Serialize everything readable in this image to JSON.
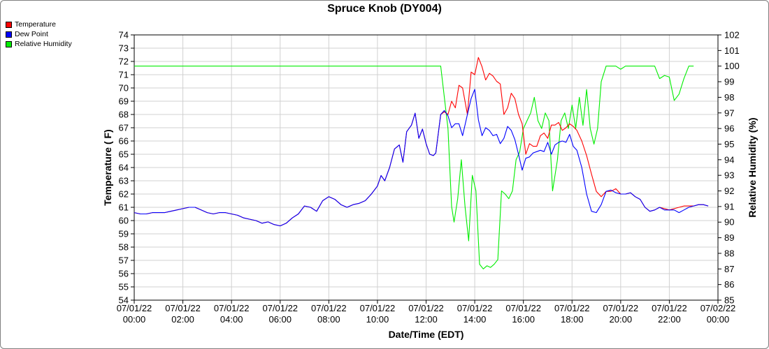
{
  "chart_data": {
    "type": "line",
    "title": "Spruce Knob (DY004)",
    "xlabel": "Date/Time (EDT)",
    "ylabel": "Temperature ( F)",
    "y2label": "Relative Humidity (%)",
    "x_ticks": [
      [
        "07/01/22",
        "00:00"
      ],
      [
        "07/01/22",
        "02:00"
      ],
      [
        "07/01/22",
        "04:00"
      ],
      [
        "07/01/22",
        "06:00"
      ],
      [
        "07/01/22",
        "08:00"
      ],
      [
        "07/01/22",
        "10:00"
      ],
      [
        "07/01/22",
        "12:00"
      ],
      [
        "07/01/22",
        "14:00"
      ],
      [
        "07/01/22",
        "16:00"
      ],
      [
        "07/01/22",
        "18:00"
      ],
      [
        "07/01/22",
        "20:00"
      ],
      [
        "07/01/22",
        "22:00"
      ],
      [
        "07/02/22",
        "00:00"
      ]
    ],
    "xlim_hours": [
      0,
      24
    ],
    "ylim": [
      54,
      74
    ],
    "y2lim": [
      85,
      102
    ],
    "grid": true,
    "legend_position": "top-left",
    "series": [
      {
        "name": "Temperature",
        "color": "#ff0000",
        "axis": "left",
        "points": [
          [
            0,
            60.6
          ],
          [
            0.25,
            60.5
          ],
          [
            0.5,
            60.5
          ],
          [
            0.75,
            60.6
          ],
          [
            1,
            60.6
          ],
          [
            1.25,
            60.6
          ],
          [
            1.5,
            60.7
          ],
          [
            1.75,
            60.8
          ],
          [
            2,
            60.9
          ],
          [
            2.25,
            61
          ],
          [
            2.5,
            61
          ],
          [
            2.75,
            60.8
          ],
          [
            3,
            60.6
          ],
          [
            3.25,
            60.5
          ],
          [
            3.5,
            60.6
          ],
          [
            3.75,
            60.6
          ],
          [
            4,
            60.5
          ],
          [
            4.25,
            60.4
          ],
          [
            4.5,
            60.2
          ],
          [
            4.75,
            60.1
          ],
          [
            5,
            60
          ],
          [
            5.25,
            59.8
          ],
          [
            5.5,
            59.9
          ],
          [
            5.75,
            59.7
          ],
          [
            6,
            59.6
          ],
          [
            6.25,
            59.8
          ],
          [
            6.5,
            60.2
          ],
          [
            6.75,
            60.5
          ],
          [
            7,
            61.1
          ],
          [
            7.25,
            61
          ],
          [
            7.5,
            60.7
          ],
          [
            7.75,
            61.5
          ],
          [
            8,
            61.8
          ],
          [
            8.25,
            61.6
          ],
          [
            8.5,
            61.2
          ],
          [
            8.75,
            61
          ],
          [
            9,
            61.2
          ],
          [
            9.25,
            61.3
          ],
          [
            9.5,
            61.5
          ],
          [
            9.75,
            62
          ],
          [
            10,
            62.6
          ],
          [
            10.15,
            63.4
          ],
          [
            10.3,
            63
          ],
          [
            10.5,
            64
          ],
          [
            10.7,
            65.4
          ],
          [
            10.9,
            65.7
          ],
          [
            11.05,
            64.4
          ],
          [
            11.2,
            66.7
          ],
          [
            11.4,
            67.2
          ],
          [
            11.55,
            68.1
          ],
          [
            11.7,
            66.2
          ],
          [
            11.85,
            66.9
          ],
          [
            12,
            65.8
          ],
          [
            12.15,
            65
          ],
          [
            12.3,
            64.9
          ],
          [
            12.4,
            65.1
          ],
          [
            12.6,
            68
          ],
          [
            12.75,
            68.2
          ],
          [
            12.9,
            68
          ],
          [
            13.05,
            69
          ],
          [
            13.2,
            68.5
          ],
          [
            13.35,
            70.2
          ],
          [
            13.5,
            70
          ],
          [
            13.7,
            68
          ],
          [
            13.85,
            71.2
          ],
          [
            14.0,
            71
          ],
          [
            14.15,
            72.3
          ],
          [
            14.3,
            71.6
          ],
          [
            14.45,
            70.6
          ],
          [
            14.6,
            71.1
          ],
          [
            14.75,
            70.9
          ],
          [
            14.9,
            70.5
          ],
          [
            15.05,
            70.3
          ],
          [
            15.2,
            68
          ],
          [
            15.35,
            68.5
          ],
          [
            15.5,
            69.6
          ],
          [
            15.65,
            69.2
          ],
          [
            15.8,
            68
          ],
          [
            15.95,
            67.3
          ],
          [
            16.1,
            65
          ],
          [
            16.25,
            65.8
          ],
          [
            16.4,
            65.6
          ],
          [
            16.55,
            65.6
          ],
          [
            16.7,
            66.4
          ],
          [
            16.85,
            66.6
          ],
          [
            17.0,
            66.2
          ],
          [
            17.15,
            67.2
          ],
          [
            17.3,
            67.2
          ],
          [
            17.45,
            67.4
          ],
          [
            17.6,
            66.8
          ],
          [
            17.75,
            67
          ],
          [
            17.9,
            67.3
          ],
          [
            18.05,
            67.1
          ],
          [
            18.2,
            66.8
          ],
          [
            18.4,
            66
          ],
          [
            18.6,
            64.9
          ],
          [
            18.8,
            63.5
          ],
          [
            19.0,
            62.2
          ],
          [
            19.2,
            61.8
          ],
          [
            19.4,
            62.2
          ],
          [
            19.6,
            62.2
          ],
          [
            19.8,
            62.4
          ],
          [
            20.0,
            62
          ],
          [
            20.2,
            62
          ],
          [
            20.4,
            62.1
          ],
          [
            20.6,
            61.8
          ],
          [
            20.8,
            61.6
          ],
          [
            21.0,
            61
          ],
          [
            21.2,
            60.7
          ],
          [
            21.4,
            60.8
          ],
          [
            21.6,
            61
          ],
          [
            21.8,
            60.9
          ],
          [
            22.0,
            60.8
          ],
          [
            22.2,
            60.9
          ],
          [
            22.4,
            61
          ],
          [
            22.6,
            61.1
          ],
          [
            22.8,
            61.1
          ],
          [
            23.0,
            61.1
          ],
          [
            23.2,
            61.2
          ],
          [
            23.4,
            61.2
          ],
          [
            23.6,
            61.1
          ]
        ]
      },
      {
        "name": "Dew Point",
        "color": "#0000ff",
        "axis": "left",
        "points": [
          [
            0,
            60.6
          ],
          [
            0.25,
            60.5
          ],
          [
            0.5,
            60.5
          ],
          [
            0.75,
            60.6
          ],
          [
            1,
            60.6
          ],
          [
            1.25,
            60.6
          ],
          [
            1.5,
            60.7
          ],
          [
            1.75,
            60.8
          ],
          [
            2,
            60.9
          ],
          [
            2.25,
            61
          ],
          [
            2.5,
            61
          ],
          [
            2.75,
            60.8
          ],
          [
            3,
            60.6
          ],
          [
            3.25,
            60.5
          ],
          [
            3.5,
            60.6
          ],
          [
            3.75,
            60.6
          ],
          [
            4,
            60.5
          ],
          [
            4.25,
            60.4
          ],
          [
            4.5,
            60.2
          ],
          [
            4.75,
            60.1
          ],
          [
            5,
            60
          ],
          [
            5.25,
            59.8
          ],
          [
            5.5,
            59.9
          ],
          [
            5.75,
            59.7
          ],
          [
            6,
            59.6
          ],
          [
            6.25,
            59.8
          ],
          [
            6.5,
            60.2
          ],
          [
            6.75,
            60.5
          ],
          [
            7,
            61.1
          ],
          [
            7.25,
            61
          ],
          [
            7.5,
            60.7
          ],
          [
            7.75,
            61.5
          ],
          [
            8,
            61.8
          ],
          [
            8.25,
            61.6
          ],
          [
            8.5,
            61.2
          ],
          [
            8.75,
            61
          ],
          [
            9,
            61.2
          ],
          [
            9.25,
            61.3
          ],
          [
            9.5,
            61.5
          ],
          [
            9.75,
            62
          ],
          [
            10,
            62.6
          ],
          [
            10.15,
            63.4
          ],
          [
            10.3,
            63
          ],
          [
            10.5,
            64
          ],
          [
            10.7,
            65.4
          ],
          [
            10.9,
            65.7
          ],
          [
            11.05,
            64.4
          ],
          [
            11.2,
            66.7
          ],
          [
            11.4,
            67.2
          ],
          [
            11.55,
            68.1
          ],
          [
            11.7,
            66.2
          ],
          [
            11.85,
            66.9
          ],
          [
            12,
            65.8
          ],
          [
            12.15,
            65
          ],
          [
            12.3,
            64.9
          ],
          [
            12.4,
            65.1
          ],
          [
            12.6,
            68
          ],
          [
            12.75,
            68.3
          ],
          [
            12.9,
            67.9
          ],
          [
            13.05,
            67
          ],
          [
            13.2,
            67.3
          ],
          [
            13.35,
            67.3
          ],
          [
            13.5,
            66.4
          ],
          [
            13.7,
            68
          ],
          [
            13.85,
            69.2
          ],
          [
            14.0,
            69.9
          ],
          [
            14.15,
            67.6
          ],
          [
            14.3,
            66.4
          ],
          [
            14.45,
            67
          ],
          [
            14.6,
            66.8
          ],
          [
            14.75,
            66.4
          ],
          [
            14.9,
            66.5
          ],
          [
            15.05,
            65.8
          ],
          [
            15.2,
            66.2
          ],
          [
            15.35,
            67.1
          ],
          [
            15.5,
            66.8
          ],
          [
            15.65,
            66.1
          ],
          [
            15.8,
            65
          ],
          [
            15.95,
            63.8
          ],
          [
            16.1,
            64.7
          ],
          [
            16.25,
            64.8
          ],
          [
            16.4,
            65.1
          ],
          [
            16.55,
            65.2
          ],
          [
            16.7,
            65.3
          ],
          [
            16.85,
            65.2
          ],
          [
            17.0,
            65.9
          ],
          [
            17.15,
            65
          ],
          [
            17.3,
            65.7
          ],
          [
            17.45,
            65.9
          ],
          [
            17.6,
            66
          ],
          [
            17.75,
            65.9
          ],
          [
            17.9,
            66.5
          ],
          [
            18.05,
            65.6
          ],
          [
            18.2,
            65.3
          ],
          [
            18.4,
            64
          ],
          [
            18.6,
            62
          ],
          [
            18.8,
            60.7
          ],
          [
            19.0,
            60.6
          ],
          [
            19.2,
            61.2
          ],
          [
            19.4,
            62.2
          ],
          [
            19.6,
            62.3
          ],
          [
            19.8,
            62.1
          ],
          [
            20.0,
            62
          ],
          [
            20.2,
            62
          ],
          [
            20.4,
            62.1
          ],
          [
            20.6,
            61.8
          ],
          [
            20.8,
            61.6
          ],
          [
            21.0,
            61
          ],
          [
            21.2,
            60.7
          ],
          [
            21.4,
            60.8
          ],
          [
            21.6,
            61
          ],
          [
            21.8,
            60.8
          ],
          [
            22.0,
            60.8
          ],
          [
            22.2,
            60.8
          ],
          [
            22.4,
            60.6
          ],
          [
            22.6,
            60.8
          ],
          [
            22.8,
            61
          ],
          [
            23.0,
            61.1
          ],
          [
            23.2,
            61.2
          ],
          [
            23.4,
            61.2
          ],
          [
            23.6,
            61.1
          ]
        ]
      },
      {
        "name": "Relative Humidity",
        "color": "#00ee00",
        "axis": "right",
        "points": [
          [
            0,
            100
          ],
          [
            12.6,
            100
          ],
          [
            12.75,
            98
          ],
          [
            12.9,
            96
          ],
          [
            13.05,
            91
          ],
          [
            13.15,
            90
          ],
          [
            13.3,
            91.5
          ],
          [
            13.45,
            94
          ],
          [
            13.6,
            91
          ],
          [
            13.75,
            88.8
          ],
          [
            13.9,
            93
          ],
          [
            14.05,
            92
          ],
          [
            14.2,
            87.3
          ],
          [
            14.35,
            87
          ],
          [
            14.5,
            87.2
          ],
          [
            14.65,
            87.1
          ],
          [
            14.8,
            87.3
          ],
          [
            14.95,
            87.6
          ],
          [
            15.1,
            92
          ],
          [
            15.25,
            91.8
          ],
          [
            15.4,
            91.5
          ],
          [
            15.55,
            92
          ],
          [
            15.7,
            94
          ],
          [
            15.85,
            94.5
          ],
          [
            16.0,
            96
          ],
          [
            16.15,
            96.5
          ],
          [
            16.3,
            97
          ],
          [
            16.45,
            98
          ],
          [
            16.6,
            96.5
          ],
          [
            16.75,
            96
          ],
          [
            16.9,
            97
          ],
          [
            17.05,
            96.5
          ],
          [
            17.2,
            92
          ],
          [
            17.4,
            94
          ],
          [
            17.55,
            96.5
          ],
          [
            17.7,
            97
          ],
          [
            17.85,
            96
          ],
          [
            18.0,
            97.5
          ],
          [
            18.15,
            96
          ],
          [
            18.3,
            98
          ],
          [
            18.45,
            96.2
          ],
          [
            18.6,
            98.5
          ],
          [
            18.75,
            96
          ],
          [
            18.9,
            95
          ],
          [
            19.05,
            96
          ],
          [
            19.2,
            99
          ],
          [
            19.4,
            100
          ],
          [
            19.6,
            100
          ],
          [
            19.8,
            100
          ],
          [
            20.0,
            99.8
          ],
          [
            20.2,
            100
          ],
          [
            20.4,
            100
          ],
          [
            20.6,
            100
          ],
          [
            20.8,
            100
          ],
          [
            21.0,
            100
          ],
          [
            21.2,
            100
          ],
          [
            21.4,
            100
          ],
          [
            21.6,
            99.2
          ],
          [
            21.8,
            99.4
          ],
          [
            22.0,
            99.3
          ],
          [
            22.2,
            97.8
          ],
          [
            22.4,
            98.2
          ],
          [
            22.6,
            99.2
          ],
          [
            22.8,
            100
          ],
          [
            23.0,
            100
          ]
        ]
      }
    ]
  }
}
